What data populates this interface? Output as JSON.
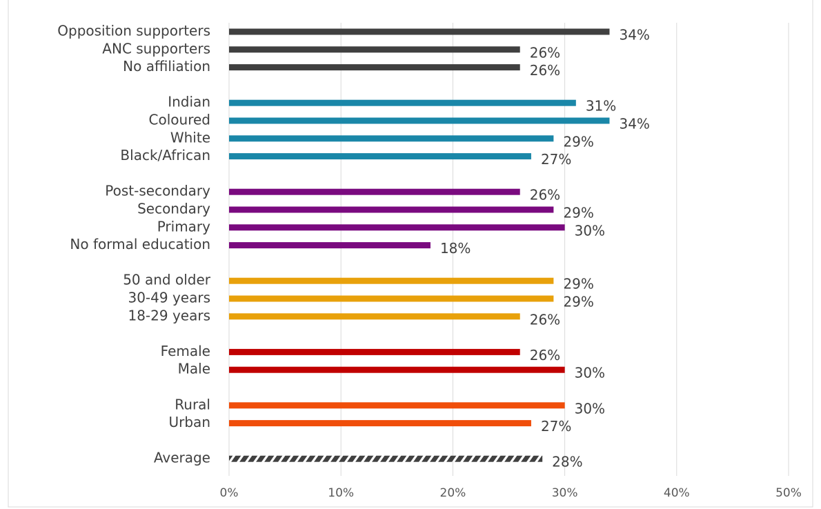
{
  "chart_data": {
    "type": "bar",
    "orientation": "horizontal",
    "categories": [
      "Opposition supporters",
      "ANC supporters",
      "No affiliation",
      null,
      "Indian",
      "Coloured",
      "White",
      "Black/African",
      null,
      "Post-secondary",
      "Secondary",
      "Primary",
      "No formal education",
      null,
      "50 and older",
      "30-49 years",
      "18-29 years",
      null,
      "Female",
      "Male",
      null,
      "Rural",
      "Urban",
      null,
      "Average"
    ],
    "values": [
      34,
      26,
      26,
      null,
      31,
      34,
      29,
      27,
      null,
      26,
      29,
      30,
      18,
      null,
      29,
      29,
      26,
      null,
      26,
      30,
      null,
      30,
      27,
      null,
      28
    ],
    "value_labels": [
      "34%",
      "26%",
      "26%",
      null,
      "31%",
      "34%",
      "29%",
      "27%",
      null,
      "26%",
      "29%",
      "30%",
      "18%",
      null,
      "29%",
      "29%",
      "26%",
      null,
      "26%",
      "30%",
      null,
      "30%",
      "27%",
      null,
      "28%"
    ],
    "colors": [
      "#404040",
      "#404040",
      "#404040",
      null,
      "#1a87a8",
      "#1a87a8",
      "#1a87a8",
      "#1a87a8",
      null,
      "#7a0a7f",
      "#7a0a7f",
      "#7a0a7f",
      "#7a0a7f",
      null,
      "#e8a10b",
      "#e8a10b",
      "#e8a10b",
      null,
      "#c00000",
      "#c00000",
      null,
      "#f04e0a",
      "#f04e0a",
      null,
      "#404040"
    ],
    "bar_style": [
      "solid",
      "solid",
      "solid",
      null,
      "solid",
      "solid",
      "solid",
      "solid",
      null,
      "solid",
      "solid",
      "solid",
      "solid",
      null,
      "solid",
      "solid",
      "solid",
      null,
      "solid",
      "solid",
      null,
      "solid",
      "solid",
      null,
      "hatched"
    ],
    "xlim": [
      0,
      50
    ],
    "xticks": [
      {
        "value": 0,
        "label": "0%"
      },
      {
        "value": 10,
        "label": "10%"
      },
      {
        "value": 20,
        "label": "20%"
      },
      {
        "value": 30,
        "label": "30%"
      },
      {
        "value": 40,
        "label": "40%"
      },
      {
        "value": 50,
        "label": "50%"
      }
    ],
    "grid": true
  }
}
